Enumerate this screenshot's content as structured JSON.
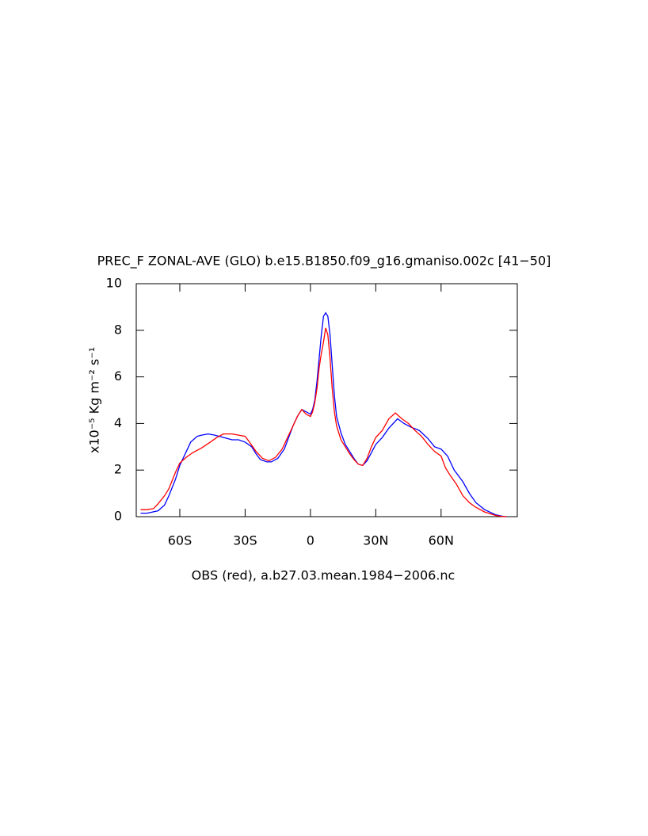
{
  "chart_data": {
    "type": "line",
    "title": "PREC_F ZONAL-AVE (GLO) b.e15.B1850.f09_g16.gmaniso.002c [41−50]",
    "ylabel": "x10⁻⁵ Kg m⁻² s⁻¹",
    "xlabel": "OBS (red), a.b27.03.mean.1984−2006.nc",
    "xlim": [
      -80,
      95
    ],
    "ylim": [
      0,
      10
    ],
    "xticks": [
      {
        "value": -60,
        "label": "60S"
      },
      {
        "value": -30,
        "label": "30S"
      },
      0,
      {
        "value": 30,
        "label": "30N"
      },
      {
        "value": 60,
        "label": "60N"
      }
    ],
    "yticks": [
      0,
      2,
      4,
      6,
      8,
      10
    ],
    "series": [
      {
        "color": "#0000ff",
        "x": [
          -78,
          -75,
          -70,
          -67,
          -65,
          -62,
          -60,
          -57,
          -55,
          -52,
          -50,
          -47,
          -44,
          -40,
          -36,
          -33,
          -30,
          -27,
          -25,
          -23,
          -20,
          -18,
          -15,
          -12,
          -10,
          -8,
          -6,
          -4,
          -2,
          0,
          1,
          2,
          3,
          4,
          5,
          6,
          7,
          8,
          9,
          10,
          11,
          12,
          14,
          16,
          18,
          20,
          22,
          24,
          26,
          28,
          30,
          33,
          36,
          40,
          43,
          46,
          50,
          54,
          57,
          60,
          63,
          66,
          70,
          73,
          76,
          80,
          85,
          88,
          90
        ],
        "values": [
          0.15,
          0.15,
          0.25,
          0.5,
          0.9,
          1.6,
          2.2,
          2.8,
          3.2,
          3.45,
          3.5,
          3.55,
          3.5,
          3.4,
          3.3,
          3.3,
          3.2,
          3.0,
          2.7,
          2.45,
          2.35,
          2.35,
          2.5,
          2.9,
          3.4,
          3.9,
          4.3,
          4.6,
          4.5,
          4.4,
          4.6,
          5.0,
          5.8,
          6.8,
          7.8,
          8.6,
          8.75,
          8.6,
          7.8,
          6.5,
          5.2,
          4.3,
          3.6,
          3.1,
          2.8,
          2.5,
          2.25,
          2.2,
          2.4,
          2.75,
          3.1,
          3.4,
          3.8,
          4.2,
          4.0,
          3.85,
          3.7,
          3.35,
          3.0,
          2.9,
          2.6,
          2.0,
          1.5,
          1.0,
          0.6,
          0.3,
          0.08,
          0.02,
          0
        ]
      },
      {
        "color": "#ff0000",
        "x": [
          -78,
          -75,
          -72,
          -70,
          -67,
          -65,
          -62,
          -60,
          -57,
          -54,
          -50,
          -46,
          -43,
          -40,
          -36,
          -33,
          -30,
          -28,
          -25,
          -22,
          -19,
          -16,
          -13,
          -10,
          -8,
          -6,
          -4,
          -2,
          0,
          1,
          2,
          3,
          4,
          5,
          6,
          7,
          8,
          9,
          10,
          11,
          12,
          14,
          16,
          18,
          20,
          22,
          24,
          26,
          28,
          30,
          33,
          36,
          39,
          42,
          45,
          48,
          51,
          54,
          57,
          60,
          62,
          64,
          67,
          70,
          73,
          76,
          80,
          85,
          88,
          90
        ],
        "values": [
          0.3,
          0.3,
          0.35,
          0.55,
          0.9,
          1.2,
          1.9,
          2.3,
          2.55,
          2.75,
          2.95,
          3.2,
          3.4,
          3.55,
          3.55,
          3.5,
          3.45,
          3.2,
          2.8,
          2.5,
          2.4,
          2.55,
          2.9,
          3.5,
          3.9,
          4.3,
          4.6,
          4.4,
          4.3,
          4.5,
          4.9,
          5.5,
          6.4,
          7.0,
          7.5,
          8.1,
          7.8,
          6.8,
          5.5,
          4.5,
          3.9,
          3.3,
          3.0,
          2.7,
          2.45,
          2.25,
          2.2,
          2.5,
          3.0,
          3.4,
          3.7,
          4.2,
          4.45,
          4.2,
          4.0,
          3.7,
          3.45,
          3.1,
          2.8,
          2.6,
          2.1,
          1.8,
          1.4,
          0.9,
          0.6,
          0.4,
          0.2,
          0.05,
          0.01,
          0
        ]
      }
    ]
  }
}
